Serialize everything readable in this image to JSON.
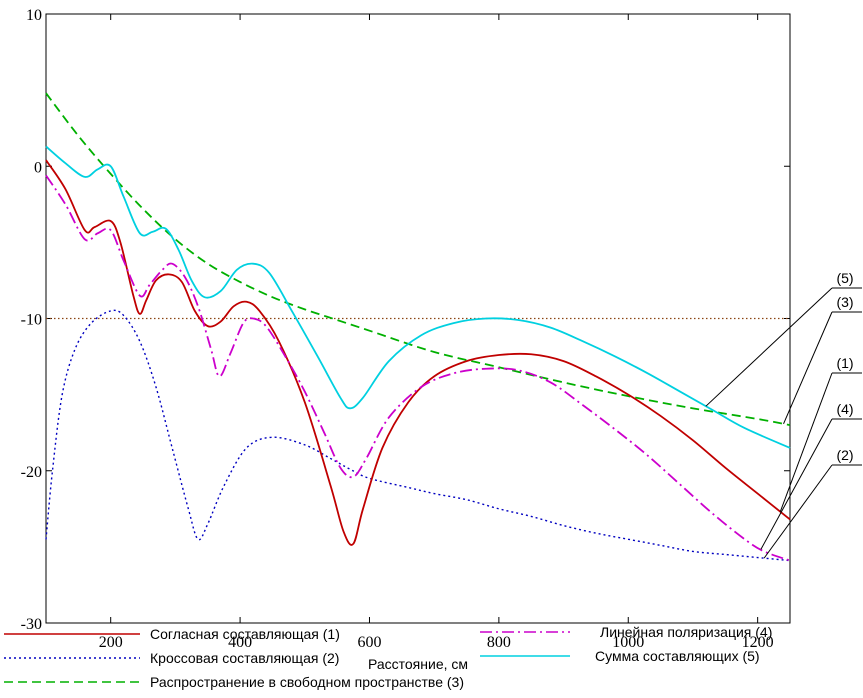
{
  "chart_data": {
    "type": "line",
    "xlabel": "Расстояние, см",
    "ylabel": "",
    "xlim": [
      100,
      1250
    ],
    "ylim": [
      -30,
      10
    ],
    "xticks": [
      200,
      400,
      600,
      800,
      1000,
      1200
    ],
    "yticks": [
      10,
      0,
      -10,
      -20,
      -30
    ],
    "grid": false,
    "reference_line": {
      "y": -10,
      "color": "#8B4513",
      "style": "dotted"
    },
    "series": [
      {
        "id": "s1",
        "name": "Согласная составляющая",
        "tag": "(1)",
        "color": "#C00000",
        "dash": "",
        "points": [
          [
            100,
            0.4
          ],
          [
            130,
            -1.5
          ],
          [
            160,
            -4.2
          ],
          [
            175,
            -4.0
          ],
          [
            200,
            -3.6
          ],
          [
            215,
            -5
          ],
          [
            235,
            -8.5
          ],
          [
            245,
            -9.7
          ],
          [
            255,
            -8.8
          ],
          [
            270,
            -7.5
          ],
          [
            290,
            -7.1
          ],
          [
            310,
            -7.6
          ],
          [
            330,
            -9.5
          ],
          [
            350,
            -10.5
          ],
          [
            370,
            -10.2
          ],
          [
            390,
            -9.2
          ],
          [
            410,
            -8.9
          ],
          [
            430,
            -9.5
          ],
          [
            460,
            -11.5
          ],
          [
            500,
            -15.5
          ],
          [
            540,
            -21
          ],
          [
            560,
            -24
          ],
          [
            575,
            -24.8
          ],
          [
            590,
            -22.5
          ],
          [
            620,
            -18.5
          ],
          [
            660,
            -15.5
          ],
          [
            700,
            -13.8
          ],
          [
            750,
            -12.8
          ],
          [
            800,
            -12.4
          ],
          [
            850,
            -12.35
          ],
          [
            900,
            -12.8
          ],
          [
            950,
            -13.8
          ],
          [
            1000,
            -15
          ],
          [
            1050,
            -16.4
          ],
          [
            1100,
            -18
          ],
          [
            1150,
            -19.8
          ],
          [
            1200,
            -21.5
          ],
          [
            1250,
            -23.2
          ]
        ]
      },
      {
        "id": "s2",
        "name": "Кроссовая составляющая",
        "tag": "(2)",
        "color": "#0000C0",
        "dash": "2,3",
        "points": [
          [
            100,
            -24.5
          ],
          [
            110,
            -20
          ],
          [
            125,
            -15
          ],
          [
            145,
            -12
          ],
          [
            170,
            -10.3
          ],
          [
            200,
            -9.5
          ],
          [
            220,
            -9.8
          ],
          [
            245,
            -11.5
          ],
          [
            270,
            -14.5
          ],
          [
            295,
            -18.5
          ],
          [
            320,
            -22.5
          ],
          [
            335,
            -24.5
          ],
          [
            350,
            -23.5
          ],
          [
            375,
            -21
          ],
          [
            410,
            -18.5
          ],
          [
            450,
            -17.8
          ],
          [
            500,
            -18.3
          ],
          [
            540,
            -19.2
          ],
          [
            570,
            -19.9
          ],
          [
            600,
            -20.5
          ],
          [
            660,
            -21.1
          ],
          [
            700,
            -21.5
          ],
          [
            750,
            -21.9
          ],
          [
            800,
            -22.5
          ],
          [
            850,
            -23
          ],
          [
            900,
            -23.6
          ],
          [
            950,
            -24.1
          ],
          [
            1000,
            -24.5
          ],
          [
            1050,
            -24.9
          ],
          [
            1100,
            -25.3
          ],
          [
            1150,
            -25.5
          ],
          [
            1200,
            -25.7
          ],
          [
            1250,
            -25.9
          ]
        ]
      },
      {
        "id": "s3",
        "name": "Распространение в свободном пространстве",
        "tag": "(3)",
        "color": "#00B000",
        "dash": "9,5",
        "points": [
          [
            100,
            4.8
          ],
          [
            150,
            2
          ],
          [
            200,
            -0.5
          ],
          [
            250,
            -2.8
          ],
          [
            300,
            -4.8
          ],
          [
            350,
            -6.4
          ],
          [
            400,
            -7.6
          ],
          [
            450,
            -8.6
          ],
          [
            500,
            -9.4
          ],
          [
            550,
            -10.1
          ],
          [
            600,
            -10.8
          ],
          [
            700,
            -12.2
          ],
          [
            800,
            -13.2
          ],
          [
            900,
            -14.2
          ],
          [
            1000,
            -15.1
          ],
          [
            1100,
            -15.9
          ],
          [
            1200,
            -16.6
          ],
          [
            1250,
            -17
          ]
        ]
      },
      {
        "id": "s4",
        "name": "Линейная поляризация",
        "tag": "(4)",
        "color": "#CC00CC",
        "dash": "12,4,2,4",
        "points": [
          [
            100,
            -0.6
          ],
          [
            130,
            -2.5
          ],
          [
            160,
            -4.8
          ],
          [
            180,
            -4.4
          ],
          [
            200,
            -4.2
          ],
          [
            220,
            -6.2
          ],
          [
            245,
            -8.5
          ],
          [
            260,
            -7.8
          ],
          [
            280,
            -6.8
          ],
          [
            295,
            -6.4
          ],
          [
            315,
            -7.3
          ],
          [
            335,
            -9.2
          ],
          [
            355,
            -12
          ],
          [
            368,
            -13.8
          ],
          [
            385,
            -12.3
          ],
          [
            405,
            -10.3
          ],
          [
            420,
            -10
          ],
          [
            440,
            -10.5
          ],
          [
            470,
            -12.5
          ],
          [
            500,
            -14.8
          ],
          [
            530,
            -17.5
          ],
          [
            555,
            -19.8
          ],
          [
            575,
            -20.4
          ],
          [
            595,
            -19.2
          ],
          [
            630,
            -16.5
          ],
          [
            680,
            -14.5
          ],
          [
            730,
            -13.6
          ],
          [
            780,
            -13.3
          ],
          [
            830,
            -13.4
          ],
          [
            880,
            -14.2
          ],
          [
            930,
            -15.7
          ],
          [
            980,
            -17.3
          ],
          [
            1030,
            -19
          ],
          [
            1080,
            -20.9
          ],
          [
            1130,
            -22.8
          ],
          [
            1180,
            -24.5
          ],
          [
            1210,
            -25.3
          ],
          [
            1250,
            -25.9
          ]
        ]
      },
      {
        "id": "s5",
        "name": "Сумма составляющих",
        "tag": "(5)",
        "color": "#00D0E0",
        "dash": "",
        "points": [
          [
            100,
            1.3
          ],
          [
            130,
            0.2
          ],
          [
            160,
            -0.7
          ],
          [
            180,
            -0.2
          ],
          [
            200,
            0
          ],
          [
            220,
            -2
          ],
          [
            245,
            -4.4
          ],
          [
            265,
            -4.3
          ],
          [
            285,
            -4.1
          ],
          [
            305,
            -5.5
          ],
          [
            325,
            -7.5
          ],
          [
            345,
            -8.6
          ],
          [
            370,
            -8.2
          ],
          [
            395,
            -6.8
          ],
          [
            420,
            -6.4
          ],
          [
            445,
            -7
          ],
          [
            480,
            -9.5
          ],
          [
            520,
            -12.5
          ],
          [
            555,
            -15.2
          ],
          [
            570,
            -15.9
          ],
          [
            590,
            -15.2
          ],
          [
            630,
            -12.8
          ],
          [
            680,
            -11.1
          ],
          [
            730,
            -10.3
          ],
          [
            780,
            -10
          ],
          [
            830,
            -10.1
          ],
          [
            880,
            -10.6
          ],
          [
            930,
            -11.5
          ],
          [
            980,
            -12.5
          ],
          [
            1030,
            -13.6
          ],
          [
            1080,
            -14.8
          ],
          [
            1130,
            -16
          ],
          [
            1180,
            -17.2
          ],
          [
            1250,
            -18.5
          ]
        ]
      }
    ],
    "legend": {
      "placement": "bottom",
      "entries": [
        {
          "series": "s1",
          "label": "Согласная составляющая  (1)"
        },
        {
          "series": "s2",
          "label": "Кроссовая составляющая  (2)"
        },
        {
          "series": "s3",
          "label": "Распространение в свободном пространстве  (3)"
        },
        {
          "series": "s4",
          "label": "Линейная поляризация  (4)"
        },
        {
          "series": "s5",
          "label": "Сумма составляющих  (5)"
        }
      ]
    },
    "callouts": [
      {
        "series": "s5",
        "text": "(5)",
        "at_x": 1120
      },
      {
        "series": "s3",
        "text": "(3)",
        "at_x": 1240
      },
      {
        "series": "s1",
        "text": "(1)",
        "at_x": 1235
      },
      {
        "series": "s4",
        "text": "(4)",
        "at_x": 1205
      },
      {
        "series": "s2",
        "text": "(2)",
        "at_x": 1210
      }
    ]
  }
}
